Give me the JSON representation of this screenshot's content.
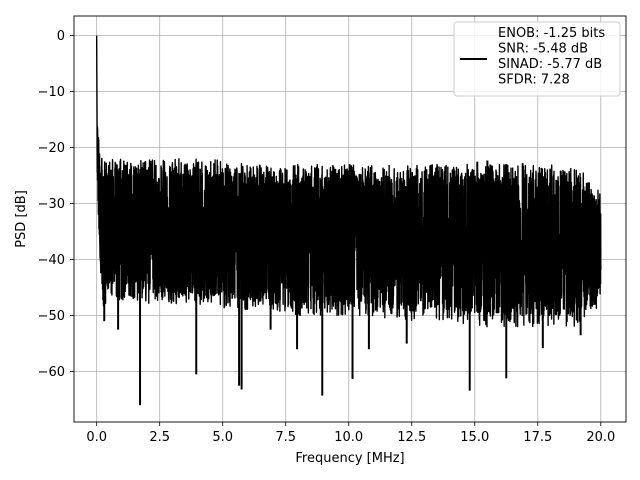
{
  "chart_data": {
    "type": "line",
    "title": "",
    "xlabel": "Frequency [MHz]",
    "ylabel": "PSD [dB]",
    "xlim": [
      -0.9,
      21.0
    ],
    "ylim": [
      -69.0,
      3.5
    ],
    "xticks": [
      0.0,
      2.5,
      5.0,
      7.5,
      10.0,
      12.5,
      15.0,
      17.5,
      20.0
    ],
    "xtick_labels": [
      "0.0",
      "2.5",
      "5.0",
      "7.5",
      "10.0",
      "12.5",
      "15.0",
      "17.5",
      "20.0"
    ],
    "yticks": [
      0,
      -10,
      -20,
      -30,
      -40,
      -50,
      -60
    ],
    "ytick_labels": [
      "0",
      "−10",
      "−20",
      "−30",
      "−40",
      "−50",
      "−60"
    ],
    "grid": true,
    "legend_position": "top-right",
    "series": [
      {
        "name": "ENOB: -1.25 bits\nSNR: -5.48 dB\nSINAD: -5.77 dB\nSFDR: 7.28",
        "color": "#000000",
        "x": [
          0.0,
          0.02,
          0.05,
          0.08,
          0.12,
          0.18,
          0.25,
          0.35,
          0.5,
          0.75,
          1.0,
          1.5,
          2.0,
          3.0,
          4.0,
          5.0,
          6.0,
          7.0,
          8.0,
          9.0,
          10.0,
          11.0,
          12.0,
          13.0,
          14.0,
          15.0,
          16.0,
          17.0,
          18.0,
          19.0,
          20.0
        ],
        "y_upper": [
          0,
          -12,
          -15,
          -17,
          -19,
          -21,
          -22,
          -22,
          -22,
          -22,
          -22,
          -22,
          -22,
          -22,
          -22,
          -22,
          -23,
          -23,
          -23,
          -23,
          -23,
          -23,
          -23,
          -23,
          -23,
          -23,
          -23,
          -23,
          -23,
          -23,
          -28
        ],
        "y_lower": [
          0,
          -25,
          -30,
          -35,
          -40,
          -45,
          -50,
          -48,
          -47,
          -48,
          -48,
          -47,
          -48,
          -48,
          -48,
          -49,
          -49,
          -49,
          -50,
          -50,
          -50,
          -50,
          -51,
          -51,
          -51,
          -52,
          -52,
          -52,
          -52,
          -52,
          -48
        ],
        "dips": [
          {
            "x": 0.3,
            "y": -51
          },
          {
            "x": 0.85,
            "y": -52.5
          },
          {
            "x": 1.72,
            "y": -66
          },
          {
            "x": 3.95,
            "y": -60.5
          },
          {
            "x": 5.65,
            "y": -62.5
          },
          {
            "x": 5.75,
            "y": -63.2
          },
          {
            "x": 6.9,
            "y": -52.5
          },
          {
            "x": 7.95,
            "y": -56
          },
          {
            "x": 8.95,
            "y": -64.3
          },
          {
            "x": 10.15,
            "y": -61.3
          },
          {
            "x": 10.8,
            "y": -56
          },
          {
            "x": 12.3,
            "y": -55
          },
          {
            "x": 14.8,
            "y": -63.4
          },
          {
            "x": 16.25,
            "y": -61.2
          },
          {
            "x": 17.7,
            "y": -55.8
          },
          {
            "x": 19.2,
            "y": -53.5
          }
        ],
        "spikes": [
          {
            "x": 15.1,
            "y": -22.5
          },
          {
            "x": 15.5,
            "y": -22.3
          },
          {
            "x": 16.9,
            "y": -22.8
          }
        ]
      }
    ]
  }
}
